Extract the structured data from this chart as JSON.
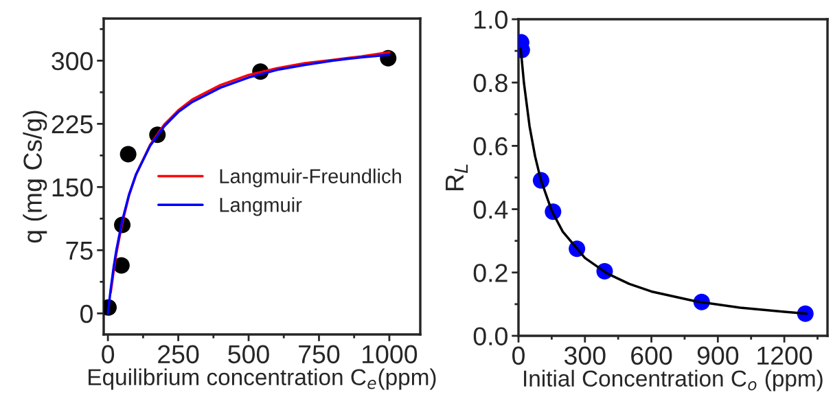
{
  "chart_data": [
    {
      "type": "scatter",
      "xlabel": "Equilibrium concentration C$_{e}$(ppm)",
      "ylabel": "q (mg Cs/g)",
      "xlim": [
        -15,
        1110
      ],
      "xticks": [
        0,
        250,
        500,
        750,
        1000
      ],
      "ylim": [
        -25,
        350
      ],
      "yticks": [
        0,
        75,
        150,
        225,
        300
      ],
      "marker": "circle",
      "grid": false,
      "legend": "center right",
      "series": [
        {
          "color": "#000000",
          "x": [
            2,
            48,
            51,
            72,
            176,
            542,
            996
          ],
          "values": [
            7,
            57,
            105,
            189,
            212,
            287,
            303
          ]
        },
        {
          "type": "line",
          "name": "Langmuir-Freundlich",
          "color": "#ff0000",
          "marker": "none",
          "x": [
            10,
            20,
            30,
            50,
            75,
            100,
            150,
            200,
            250,
            300,
            400,
            500,
            600,
            700,
            800,
            900,
            1000
          ],
          "values": [
            25,
            49,
            71,
            106,
            140,
            165,
            200,
            224,
            241,
            254,
            271,
            283,
            291,
            297,
            301,
            305,
            310
          ]
        },
        {
          "type": "line",
          "name": "Langmuir",
          "color": "#0000ff",
          "marker": "none",
          "x": [
            0,
            10,
            20,
            30,
            50,
            75,
            100,
            150,
            200,
            250,
            300,
            400,
            500,
            600,
            700,
            800,
            900,
            1000
          ],
          "values": [
            0,
            29,
            54,
            75,
            109,
            141,
            165,
            199,
            222,
            239,
            251,
            268,
            280,
            289,
            295,
            300,
            304,
            307
          ]
        }
      ]
    },
    {
      "type": "scatter",
      "xlabel": "Initial Concentration C$_{o}$ (ppm)",
      "ylabel": "R$_{L}$",
      "xlim": [
        0,
        1395
      ],
      "xticks": [
        0,
        300,
        600,
        900,
        1200
      ],
      "ylim": [
        0,
        1.0
      ],
      "yticks": [
        {
          "value": 0,
          "label": "0.0"
        },
        {
          "value": 0.2,
          "label": "0.2"
        },
        {
          "value": 0.4,
          "label": "0.4"
        },
        {
          "value": 0.6,
          "label": "0.6"
        },
        {
          "value": 0.8,
          "label": "0.8"
        },
        {
          "value": 1.0,
          "label": "1.0"
        }
      ],
      "marker": "circle",
      "grid": false,
      "series": [
        {
          "type": "line",
          "color": "#000000",
          "marker": "none",
          "x": [
            10,
            25,
            50,
            75,
            100,
            150,
            200,
            300,
            400,
            500,
            600,
            800,
            1000,
            1200,
            1300
          ],
          "values": [
            0.907,
            0.797,
            0.662,
            0.567,
            0.495,
            0.395,
            0.329,
            0.246,
            0.197,
            0.164,
            0.14,
            0.109,
            0.089,
            0.076,
            0.07
          ]
        },
        {
          "color": "#0000ff",
          "x": [
            12,
            15,
            102,
            156,
            264,
            389,
            827,
            1295
          ],
          "values": [
            0.927,
            0.903,
            0.491,
            0.392,
            0.275,
            0.204,
            0.107,
            0.07
          ]
        }
      ]
    }
  ]
}
